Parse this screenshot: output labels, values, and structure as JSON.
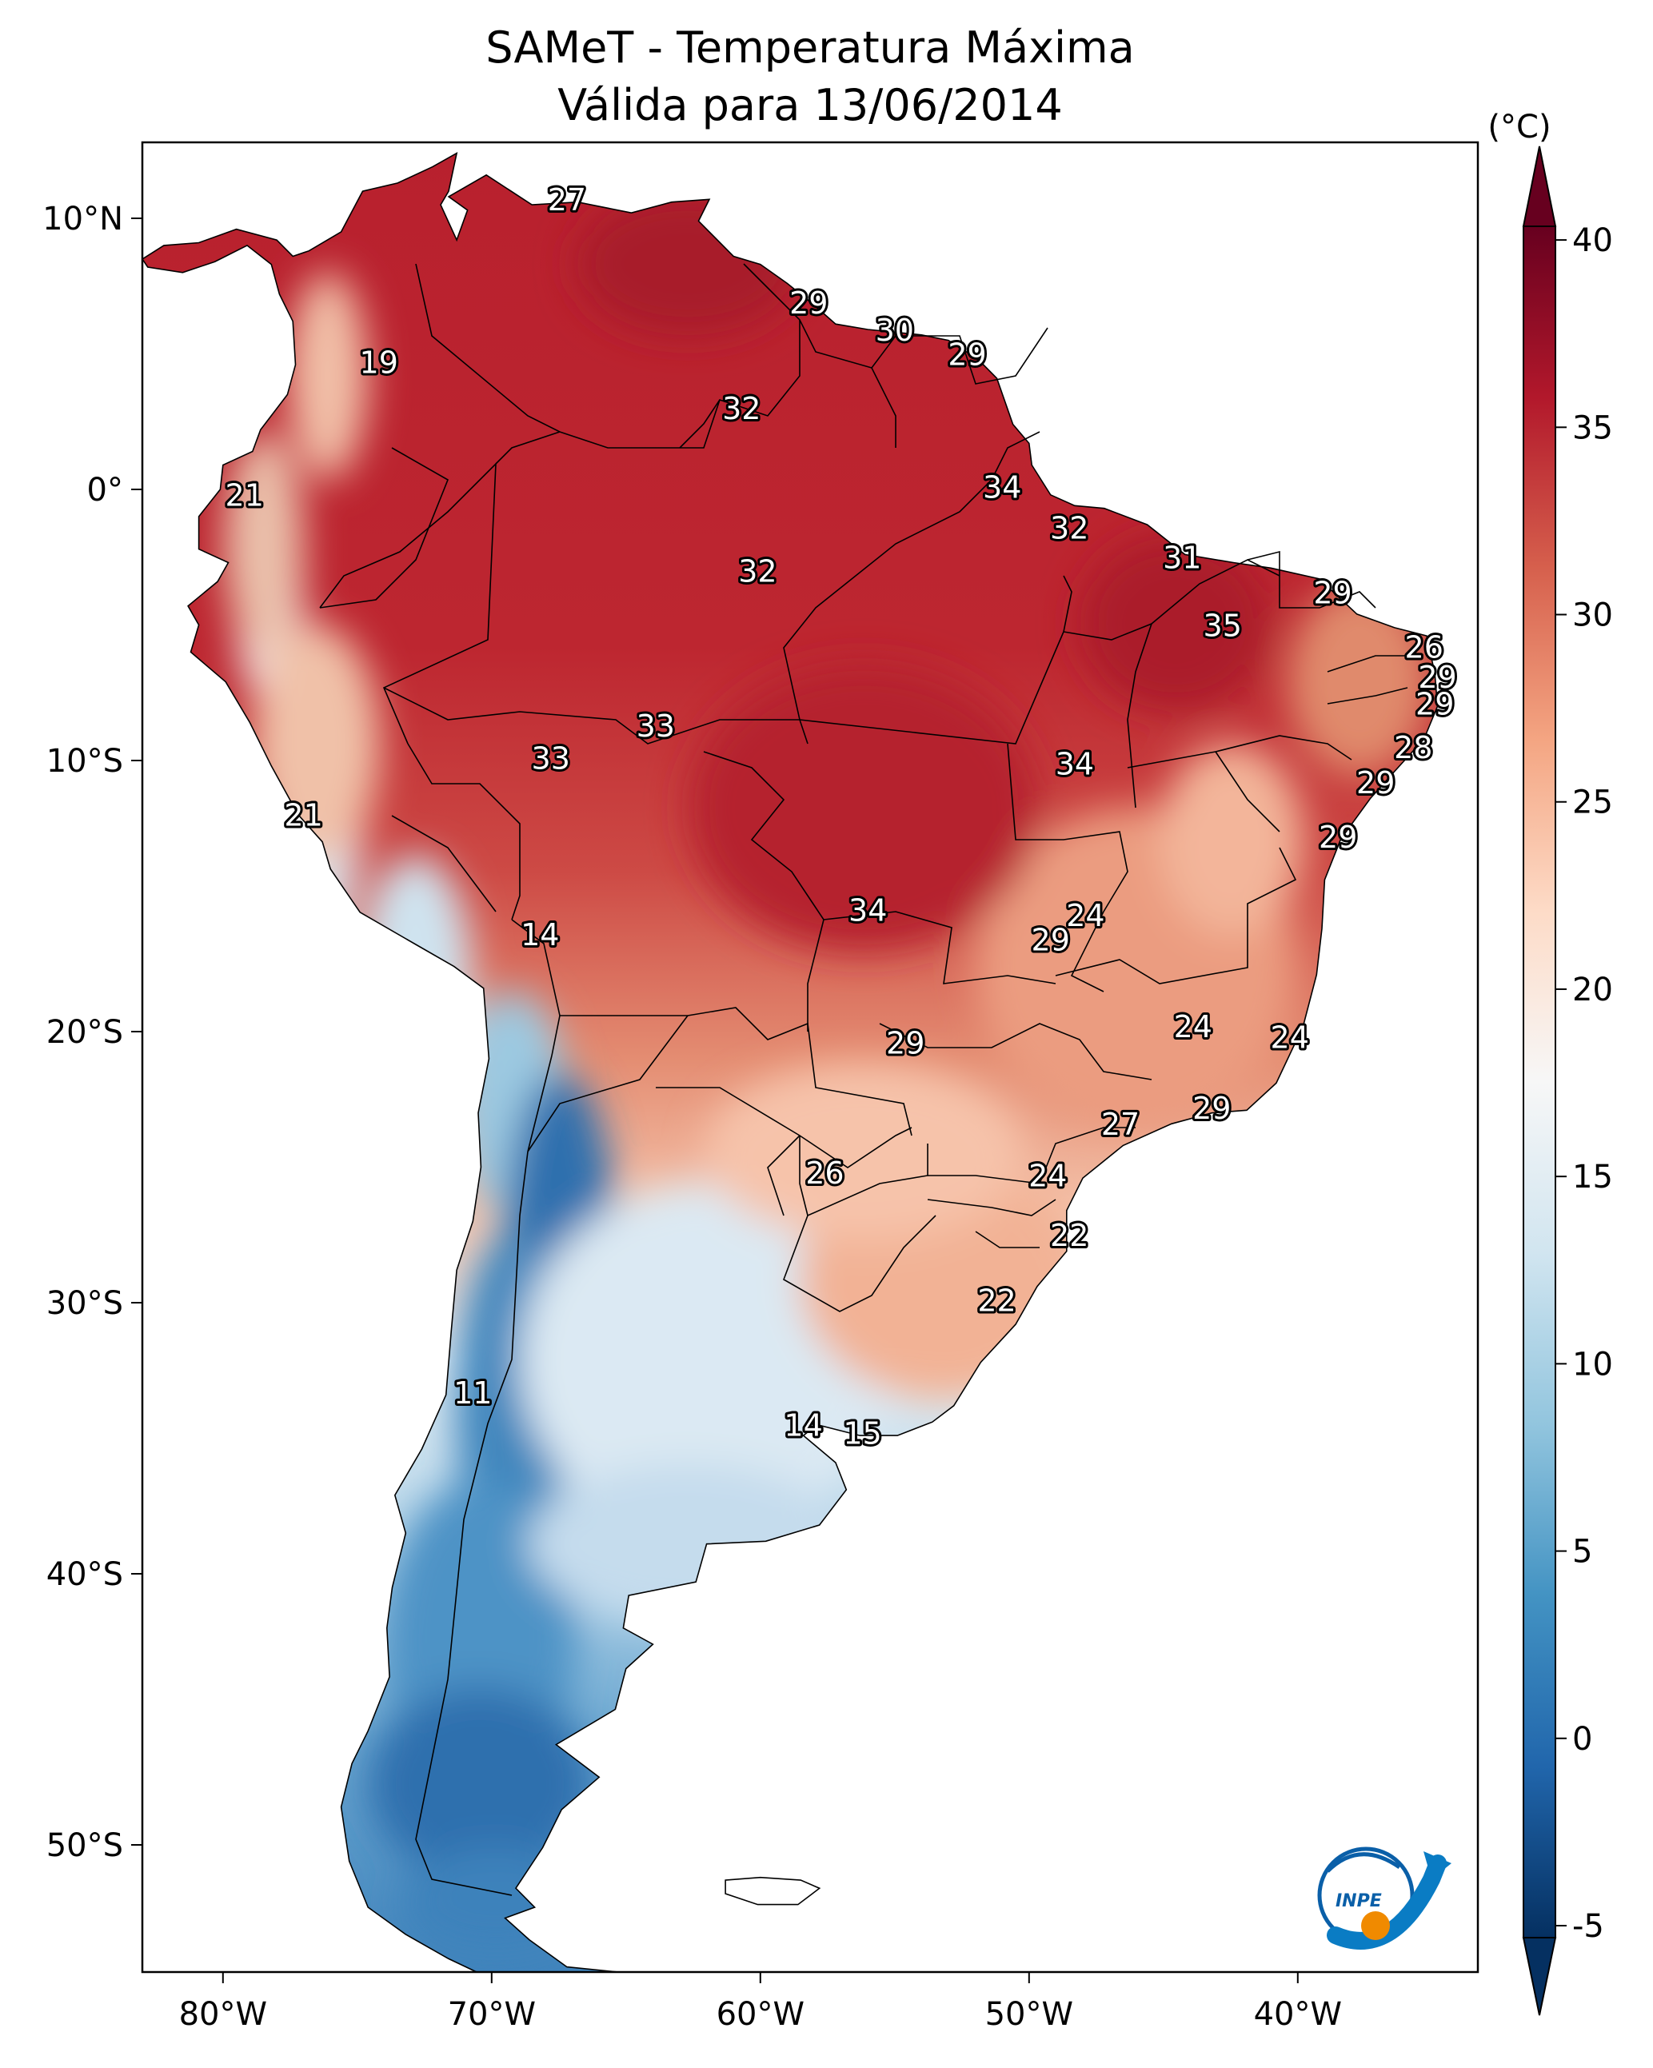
{
  "title": {
    "line1": "SAMeT - Temperatura Máxima",
    "line2": "Válida para 13/06/2014"
  },
  "axes": {
    "lon_ticks": [
      "80°W",
      "70°W",
      "60°W",
      "50°W",
      "40°W"
    ],
    "lat_ticks": [
      "10°N",
      "0°",
      "10°S",
      "20°S",
      "30°S",
      "40°S",
      "50°S"
    ]
  },
  "colorbar": {
    "unit_label": "(°C)",
    "ticks": [
      "40",
      "35",
      "30",
      "25",
      "20",
      "15",
      "10",
      "5",
      "0",
      "-5"
    ],
    "range": [
      -5,
      40
    ],
    "colors": [
      "#053061",
      "#2166ac",
      "#4393c3",
      "#92c5de",
      "#d1e5f0",
      "#f7f7f7",
      "#fddbc7",
      "#f4a582",
      "#d6604d",
      "#b2182b",
      "#67001f"
    ]
  },
  "station_labels": [
    {
      "text": "27",
      "lon": -67.2,
      "lat": 10.6
    },
    {
      "text": "19",
      "lon": -74.2,
      "lat": 4.6
    },
    {
      "text": "21",
      "lon": -79.2,
      "lat": -0.3
    },
    {
      "text": "29",
      "lon": -58.2,
      "lat": 6.8
    },
    {
      "text": "30",
      "lon": -55.0,
      "lat": 5.8
    },
    {
      "text": "29",
      "lon": -52.3,
      "lat": 4.9
    },
    {
      "text": "32",
      "lon": -60.7,
      "lat": 2.9
    },
    {
      "text": "34",
      "lon": -51.0,
      "lat": 0.0
    },
    {
      "text": "32",
      "lon": -48.5,
      "lat": -1.5
    },
    {
      "text": "32",
      "lon": -60.1,
      "lat": -3.1
    },
    {
      "text": "31",
      "lon": -44.3,
      "lat": -2.6
    },
    {
      "text": "29",
      "lon": -38.7,
      "lat": -3.9
    },
    {
      "text": "35",
      "lon": -42.8,
      "lat": -5.1
    },
    {
      "text": "26",
      "lon": -35.3,
      "lat": -5.9
    },
    {
      "text": "29",
      "lon": -34.8,
      "lat": -7.0
    },
    {
      "text": "29",
      "lon": -34.9,
      "lat": -8.0
    },
    {
      "text": "28",
      "lon": -35.7,
      "lat": -9.6
    },
    {
      "text": "33",
      "lon": -63.9,
      "lat": -8.8
    },
    {
      "text": "33",
      "lon": -67.8,
      "lat": -10.0
    },
    {
      "text": "34",
      "lon": -48.3,
      "lat": -10.2
    },
    {
      "text": "29",
      "lon": -37.1,
      "lat": -10.9
    },
    {
      "text": "21",
      "lon": -77.0,
      "lat": -12.1
    },
    {
      "text": "29",
      "lon": -38.5,
      "lat": -12.9
    },
    {
      "text": "34",
      "lon": -56.0,
      "lat": -15.6
    },
    {
      "text": "24",
      "lon": -47.9,
      "lat": -15.8
    },
    {
      "text": "29",
      "lon": -49.2,
      "lat": -16.7
    },
    {
      "text": "14",
      "lon": -68.2,
      "lat": -16.5
    },
    {
      "text": "24",
      "lon": -43.9,
      "lat": -19.9
    },
    {
      "text": "24",
      "lon": -40.3,
      "lat": -20.3
    },
    {
      "text": "29",
      "lon": -54.6,
      "lat": -20.5
    },
    {
      "text": "29",
      "lon": -43.2,
      "lat": -22.9
    },
    {
      "text": "27",
      "lon": -46.6,
      "lat": -23.5
    },
    {
      "text": "26",
      "lon": -57.6,
      "lat": -25.3
    },
    {
      "text": "24",
      "lon": -49.3,
      "lat": -25.4
    },
    {
      "text": "22",
      "lon": -48.5,
      "lat": -27.6
    },
    {
      "text": "22",
      "lon": -51.2,
      "lat": -30.0
    },
    {
      "text": "11",
      "lon": -70.7,
      "lat": -33.4
    },
    {
      "text": "14",
      "lon": -58.4,
      "lat": -34.6
    },
    {
      "text": "15",
      "lon": -56.2,
      "lat": -34.9
    }
  ]
}
